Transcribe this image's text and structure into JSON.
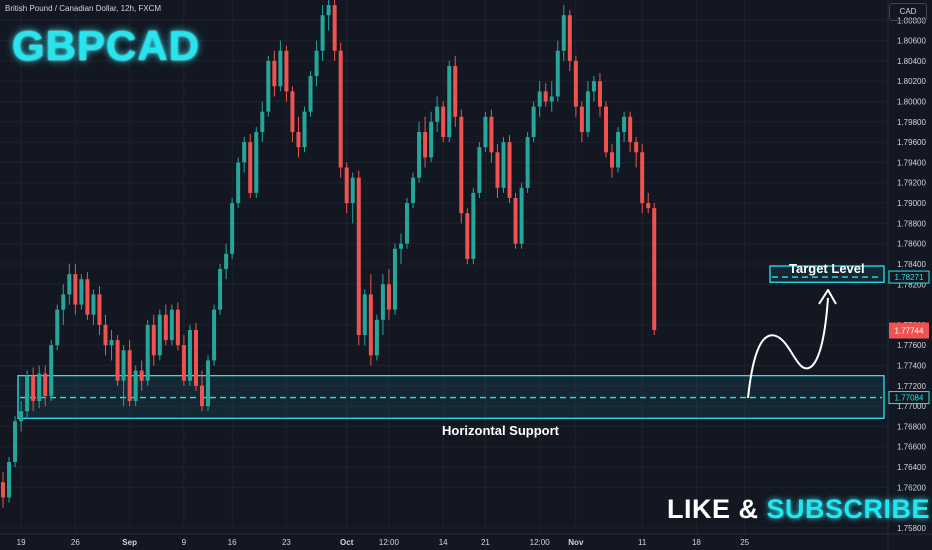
{
  "header": {
    "title": "British Pound / Canadian Dollar, 12h, FXCM",
    "currency_button": "CAD"
  },
  "overlay": {
    "ticker": "GBPCAD",
    "cta_like": "LIKE &",
    "cta_subscribe": "SUBSCRIBE",
    "support_label": "Horizontal Support",
    "target_label": "Target Level"
  },
  "colors": {
    "background": "#131722",
    "up": "#26a69a",
    "down": "#ef5350",
    "accent": "#23e6f0",
    "grid": "#1e222d"
  },
  "chart_data": {
    "type": "candlestick",
    "symbol": "GBPCAD",
    "interval": "12h",
    "source": "FXCM",
    "grid": true,
    "ylim": [
      1.7576,
      1.81
    ],
    "y_ticks": [
      1.758,
      1.762,
      1.764,
      1.766,
      1.768,
      1.77,
      1.772,
      1.774,
      1.776,
      1.778,
      1.782,
      1.784,
      1.786,
      1.788,
      1.79,
      1.792,
      1.794,
      1.796,
      1.798,
      1.8,
      1.802,
      1.804,
      1.806,
      1.808
    ],
    "y_tick_labels": [
      "1.75800",
      "1.76200",
      "1.76400",
      "1.76600",
      "1.76800",
      "1.77000",
      "1.77200",
      "1.77400",
      "1.77600",
      "1.77800",
      "1.78200",
      "1.78400",
      "1.78600",
      "1.78800",
      "1.79000",
      "1.79200",
      "1.79400",
      "1.79600",
      "1.79800",
      "1.80000",
      "1.80200",
      "1.80400",
      "1.80600",
      "1.80800"
    ],
    "x_labels": [
      {
        "label": "19",
        "bar": 3
      },
      {
        "label": "26",
        "bar": 12
      },
      {
        "label": "Sep",
        "bar": 21
      },
      {
        "label": "9",
        "bar": 30
      },
      {
        "label": "16",
        "bar": 38
      },
      {
        "label": "23",
        "bar": 47
      },
      {
        "label": "Oct",
        "bar": 57
      },
      {
        "label": "12:00",
        "bar": 64
      },
      {
        "label": "14",
        "bar": 73
      },
      {
        "label": "21",
        "bar": 80
      },
      {
        "label": "12:00",
        "bar": 89
      },
      {
        "label": "Nov",
        "bar": 95
      },
      {
        "label": "11",
        "bar": 106
      },
      {
        "label": "18",
        "bar": 115
      },
      {
        "label": "25",
        "bar": 123
      }
    ],
    "candles": [
      [
        1.7625,
        1.7635,
        1.76,
        1.761
      ],
      [
        1.761,
        1.765,
        1.7605,
        1.7645
      ],
      [
        1.7645,
        1.769,
        1.764,
        1.7685
      ],
      [
        1.7685,
        1.7705,
        1.7675,
        1.7695
      ],
      [
        1.7695,
        1.7735,
        1.7688,
        1.773
      ],
      [
        1.773,
        1.7738,
        1.7695,
        1.7705
      ],
      [
        1.7705,
        1.774,
        1.7698,
        1.7732
      ],
      [
        1.7732,
        1.774,
        1.77,
        1.771
      ],
      [
        1.771,
        1.7765,
        1.7705,
        1.776
      ],
      [
        1.776,
        1.78,
        1.7755,
        1.7795
      ],
      [
        1.7795,
        1.782,
        1.778,
        1.781
      ],
      [
        1.781,
        1.784,
        1.78,
        1.783
      ],
      [
        1.783,
        1.784,
        1.779,
        1.78
      ],
      [
        1.78,
        1.783,
        1.7795,
        1.7825
      ],
      [
        1.7825,
        1.7832,
        1.7785,
        1.779
      ],
      [
        1.779,
        1.7815,
        1.778,
        1.781
      ],
      [
        1.781,
        1.7818,
        1.777,
        1.778
      ],
      [
        1.778,
        1.779,
        1.775,
        1.776
      ],
      [
        1.776,
        1.7775,
        1.7745,
        1.7765
      ],
      [
        1.7765,
        1.777,
        1.772,
        1.7725
      ],
      [
        1.7725,
        1.776,
        1.77,
        1.7755
      ],
      [
        1.7755,
        1.7765,
        1.77,
        1.7705
      ],
      [
        1.7705,
        1.774,
        1.77,
        1.7735
      ],
      [
        1.7735,
        1.7745,
        1.7715,
        1.7725
      ],
      [
        1.7725,
        1.7785,
        1.772,
        1.778
      ],
      [
        1.778,
        1.779,
        1.774,
        1.775
      ],
      [
        1.775,
        1.7795,
        1.7745,
        1.779
      ],
      [
        1.779,
        1.78,
        1.776,
        1.7765
      ],
      [
        1.7765,
        1.78,
        1.776,
        1.7795
      ],
      [
        1.7795,
        1.7802,
        1.7755,
        1.776
      ],
      [
        1.776,
        1.777,
        1.772,
        1.7725
      ],
      [
        1.7725,
        1.778,
        1.772,
        1.7775
      ],
      [
        1.7775,
        1.7782,
        1.7715,
        1.772
      ],
      [
        1.772,
        1.7735,
        1.7695,
        1.77
      ],
      [
        1.77,
        1.775,
        1.7695,
        1.7745
      ],
      [
        1.7745,
        1.78,
        1.774,
        1.7795
      ],
      [
        1.7795,
        1.784,
        1.779,
        1.7835
      ],
      [
        1.7835,
        1.786,
        1.7825,
        1.785
      ],
      [
        1.785,
        1.7905,
        1.7845,
        1.79
      ],
      [
        1.79,
        1.7945,
        1.7895,
        1.794
      ],
      [
        1.794,
        1.7965,
        1.793,
        1.796
      ],
      [
        1.796,
        1.7968,
        1.7905,
        1.791
      ],
      [
        1.791,
        1.7975,
        1.7905,
        1.797
      ],
      [
        1.797,
        1.8,
        1.796,
        1.799
      ],
      [
        1.799,
        1.8045,
        1.7985,
        1.804
      ],
      [
        1.804,
        1.805,
        1.8005,
        1.8015
      ],
      [
        1.8015,
        1.806,
        1.801,
        1.805
      ],
      [
        1.805,
        1.8055,
        1.8,
        1.801
      ],
      [
        1.801,
        1.8015,
        1.796,
        1.797
      ],
      [
        1.797,
        1.7985,
        1.7945,
        1.7955
      ],
      [
        1.7955,
        1.7995,
        1.795,
        1.799
      ],
      [
        1.799,
        1.803,
        1.7985,
        1.8025
      ],
      [
        1.8025,
        1.806,
        1.8015,
        1.805
      ],
      [
        1.805,
        1.8095,
        1.804,
        1.8085
      ],
      [
        1.8085,
        1.811,
        1.807,
        1.8095
      ],
      [
        1.8095,
        1.81,
        1.804,
        1.805
      ],
      [
        1.805,
        1.8058,
        1.7925,
        1.7935
      ],
      [
        1.7935,
        1.794,
        1.789,
        1.79
      ],
      [
        1.79,
        1.793,
        1.788,
        1.7925
      ],
      [
        1.7925,
        1.7932,
        1.776,
        1.777
      ],
      [
        1.777,
        1.7815,
        1.776,
        1.781
      ],
      [
        1.781,
        1.783,
        1.774,
        1.775
      ],
      [
        1.775,
        1.779,
        1.7745,
        1.7785
      ],
      [
        1.7785,
        1.783,
        1.777,
        1.782
      ],
      [
        1.782,
        1.7835,
        1.7785,
        1.7795
      ],
      [
        1.7795,
        1.786,
        1.779,
        1.7855
      ],
      [
        1.7855,
        1.787,
        1.784,
        1.786
      ],
      [
        1.786,
        1.7905,
        1.7855,
        1.79
      ],
      [
        1.79,
        1.793,
        1.7895,
        1.7925
      ],
      [
        1.7925,
        1.798,
        1.792,
        1.797
      ],
      [
        1.797,
        1.7985,
        1.7935,
        1.7945
      ],
      [
        1.7945,
        1.799,
        1.794,
        1.798
      ],
      [
        1.798,
        1.8005,
        1.797,
        1.7995
      ],
      [
        1.7995,
        1.8,
        1.796,
        1.7965
      ],
      [
        1.7965,
        1.804,
        1.796,
        1.8035
      ],
      [
        1.8035,
        1.8045,
        1.7975,
        1.7985
      ],
      [
        1.7985,
        1.7992,
        1.788,
        1.789
      ],
      [
        1.789,
        1.7895,
        1.784,
        1.7845
      ],
      [
        1.7845,
        1.7915,
        1.784,
        1.791
      ],
      [
        1.791,
        1.796,
        1.7905,
        1.7955
      ],
      [
        1.7955,
        1.799,
        1.795,
        1.7985
      ],
      [
        1.7985,
        1.7992,
        1.794,
        1.795
      ],
      [
        1.795,
        1.7958,
        1.7905,
        1.7915
      ],
      [
        1.7915,
        1.7965,
        1.791,
        1.796
      ],
      [
        1.796,
        1.7967,
        1.79,
        1.7905
      ],
      [
        1.7905,
        1.791,
        1.7855,
        1.786
      ],
      [
        1.786,
        1.792,
        1.7855,
        1.7915
      ],
      [
        1.7915,
        1.797,
        1.791,
        1.7965
      ],
      [
        1.7965,
        1.8,
        1.796,
        1.7995
      ],
      [
        1.7995,
        1.802,
        1.7985,
        1.801
      ],
      [
        1.801,
        1.8018,
        1.7995,
        1.8
      ],
      [
        1.8,
        1.802,
        1.799,
        1.8005
      ],
      [
        1.8005,
        1.806,
        1.8,
        1.805
      ],
      [
        1.805,
        1.8095,
        1.804,
        1.8085
      ],
      [
        1.8085,
        1.809,
        1.803,
        1.804
      ],
      [
        1.804,
        1.8045,
        1.7985,
        1.7995
      ],
      [
        1.7995,
        1.8,
        1.796,
        1.797
      ],
      [
        1.797,
        1.802,
        1.7965,
        1.801
      ],
      [
        1.801,
        1.8025,
        1.8,
        1.802
      ],
      [
        1.802,
        1.8028,
        1.7985,
        1.7995
      ],
      [
        1.7995,
        1.8,
        1.7945,
        1.795
      ],
      [
        1.795,
        1.7958,
        1.7925,
        1.7935
      ],
      [
        1.7935,
        1.7975,
        1.793,
        1.797
      ],
      [
        1.797,
        1.799,
        1.796,
        1.7985
      ],
      [
        1.7985,
        1.799,
        1.795,
        1.796
      ],
      [
        1.796,
        1.7965,
        1.7935,
        1.795
      ],
      [
        1.795,
        1.7958,
        1.789,
        1.79
      ],
      [
        1.79,
        1.791,
        1.789,
        1.7895
      ],
      [
        1.7895,
        1.79,
        1.777,
        1.7775
      ]
    ],
    "zones": [
      {
        "label": "Horizontal Support",
        "from": 1.7688,
        "to": 1.773,
        "level": 1.77084,
        "level_label": "1.77084"
      },
      {
        "label": "Target Level",
        "from": 1.7822,
        "to": 1.7838,
        "level": 1.78271,
        "level_label": "1.78271"
      }
    ],
    "current_price": 1.77744,
    "current_price_label": "1.77744"
  }
}
